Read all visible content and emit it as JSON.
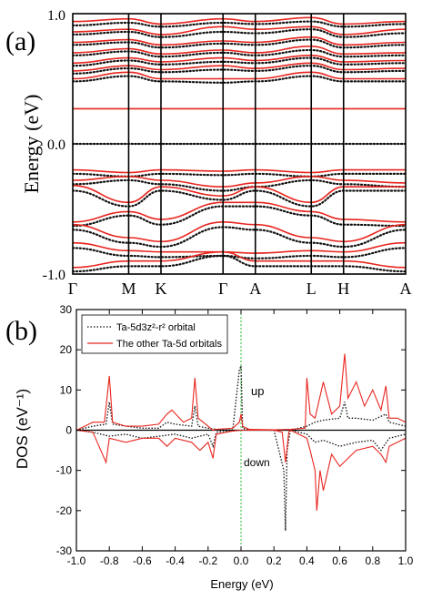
{
  "chart_data": [
    {
      "type": "line",
      "panel_label": "(a)",
      "ylabel": "Energy (eV)",
      "ylim": [
        -1.0,
        1.0
      ],
      "y_ticks": [
        "1.0",
        "0.0",
        "-1.0"
      ],
      "k_points": [
        "Γ",
        "M",
        "K",
        "Γ",
        "A",
        "L",
        "H",
        "A"
      ],
      "k_positions": [
        0,
        0.372,
        0.587,
        1.0,
        1.215,
        1.587,
        1.802,
        2.215
      ],
      "series": [
        {
          "style": "solid",
          "color": "#e8261f",
          "bands": [
            [
              0.27,
              0.27,
              0.27,
              0.27,
              0.27,
              0.27,
              0.27,
              0.27
            ],
            [
              0.5,
              0.55,
              0.5,
              0.5,
              0.5,
              0.55,
              0.5,
              0.5
            ],
            [
              0.56,
              0.6,
              0.57,
              0.6,
              0.58,
              0.62,
              0.57,
              0.58
            ],
            [
              0.62,
              0.66,
              0.63,
              0.66,
              0.64,
              0.68,
              0.63,
              0.64
            ],
            [
              0.7,
              0.73,
              0.69,
              0.72,
              0.7,
              0.75,
              0.69,
              0.7
            ],
            [
              0.78,
              0.8,
              0.76,
              0.79,
              0.78,
              0.82,
              0.76,
              0.78
            ],
            [
              0.86,
              0.88,
              0.84,
              0.9,
              0.88,
              0.9,
              0.84,
              0.88
            ],
            [
              0.94,
              0.96,
              0.92,
              0.96,
              0.94,
              0.97,
              0.92,
              0.94
            ],
            [
              -0.2,
              -0.22,
              -0.2,
              -0.21,
              -0.2,
              -0.22,
              -0.2,
              -0.2
            ],
            [
              -0.28,
              -0.25,
              -0.28,
              -0.33,
              -0.3,
              -0.25,
              -0.28,
              -0.3
            ],
            [
              -0.32,
              -0.45,
              -0.33,
              -0.4,
              -0.33,
              -0.45,
              -0.33,
              -0.33
            ],
            [
              -0.6,
              -0.52,
              -0.58,
              -0.45,
              -0.45,
              -0.52,
              -0.58,
              -0.6
            ],
            [
              -0.62,
              -0.72,
              -0.75,
              -0.6,
              -0.62,
              -0.72,
              -0.75,
              -0.62
            ],
            [
              -0.76,
              -0.82,
              -0.83,
              -0.83,
              -0.84,
              -0.82,
              -0.83,
              -0.76
            ],
            [
              -0.95,
              -0.9,
              -0.9,
              -0.83,
              -0.9,
              -0.9,
              -0.9,
              -0.95
            ]
          ]
        },
        {
          "style": "dotted",
          "color": "#111111",
          "bands": [
            [
              0.0,
              0.0,
              0.0,
              0.0,
              0.0,
              0.0,
              0.0,
              0.0
            ],
            [
              0.48,
              0.52,
              0.48,
              0.47,
              0.48,
              0.52,
              0.48,
              0.48
            ],
            [
              0.54,
              0.58,
              0.55,
              0.57,
              0.56,
              0.6,
              0.55,
              0.56
            ],
            [
              0.6,
              0.64,
              0.61,
              0.63,
              0.62,
              0.66,
              0.61,
              0.62
            ],
            [
              0.68,
              0.71,
              0.67,
              0.7,
              0.68,
              0.72,
              0.67,
              0.68
            ],
            [
              0.76,
              0.78,
              0.74,
              0.77,
              0.76,
              0.8,
              0.74,
              0.76
            ],
            [
              0.84,
              0.86,
              0.82,
              0.86,
              0.85,
              0.88,
              0.82,
              0.85
            ],
            [
              0.91,
              0.93,
              0.9,
              0.93,
              0.92,
              0.94,
              0.9,
              0.92
            ],
            [
              -0.23,
              -0.25,
              -0.23,
              -0.24,
              -0.23,
              -0.25,
              -0.23,
              -0.23
            ],
            [
              -0.31,
              -0.28,
              -0.31,
              -0.36,
              -0.33,
              -0.28,
              -0.31,
              -0.33
            ],
            [
              -0.36,
              -0.48,
              -0.36,
              -0.43,
              -0.36,
              -0.48,
              -0.36,
              -0.36
            ],
            [
              -0.63,
              -0.55,
              -0.62,
              -0.48,
              -0.48,
              -0.55,
              -0.62,
              -0.63
            ],
            [
              -0.66,
              -0.76,
              -0.79,
              -0.64,
              -0.66,
              -0.76,
              -0.79,
              -0.66
            ],
            [
              -0.8,
              -0.86,
              -0.87,
              -0.86,
              -0.88,
              -0.86,
              -0.87,
              -0.8
            ],
            [
              -0.98,
              -0.94,
              -0.94,
              -0.86,
              -0.94,
              -0.94,
              -0.94,
              -0.98
            ]
          ]
        }
      ]
    },
    {
      "type": "line",
      "panel_label": "(b)",
      "xlabel": "Energy (eV)",
      "ylabel": "DOS (eV⁻¹)",
      "xlim": [
        -1.0,
        1.0
      ],
      "ylim": [
        -30,
        30
      ],
      "x_ticks": [
        "-1.0",
        "-0.8",
        "-0.6",
        "-0.4",
        "-0.2",
        "0.0",
        "0.2",
        "0.4",
        "0.6",
        "0.8",
        "1.0"
      ],
      "y_ticks": [
        "30",
        "20",
        "10",
        "0",
        "-10",
        "-20",
        "-30"
      ],
      "annotations": [
        "up",
        "down"
      ],
      "vline_x": 0.0,
      "vline_color": "#22c02a",
      "series": [
        {
          "name": "Ta-5d3z²-r² orbital",
          "style": "dotted",
          "color": "#111111",
          "up_x": [
            -1.0,
            -0.95,
            -0.9,
            -0.82,
            -0.8,
            -0.78,
            -0.7,
            -0.6,
            -0.5,
            -0.45,
            -0.4,
            -0.3,
            -0.28,
            -0.26,
            -0.2,
            -0.15,
            -0.05,
            -0.01,
            0.0,
            0.01,
            0.05,
            0.2,
            0.25,
            0.27,
            0.3,
            0.4,
            0.45,
            0.5,
            0.6,
            0.63,
            0.65,
            0.7,
            0.8,
            0.88,
            0.9,
            1.0
          ],
          "up_y": [
            0,
            0.5,
            1,
            1.5,
            7,
            1.5,
            1,
            0.5,
            0.5,
            2,
            1.5,
            1,
            6,
            1,
            0.5,
            0.2,
            0.1,
            15,
            16,
            0.5,
            0.1,
            0,
            0,
            0,
            0,
            1,
            2,
            2.5,
            3,
            7,
            3,
            3,
            2.5,
            4,
            2,
            1
          ],
          "down_x": [
            -1.0,
            -0.9,
            -0.8,
            -0.7,
            -0.6,
            -0.5,
            -0.4,
            -0.3,
            -0.2,
            -0.17,
            -0.15,
            -0.05,
            0.0,
            0.05,
            0.2,
            0.26,
            0.27,
            0.28,
            0.3,
            0.4,
            0.45,
            0.5,
            0.6,
            0.7,
            0.8,
            0.85,
            0.9,
            1.0
          ],
          "down_y": [
            0,
            -0.5,
            -1.5,
            -1,
            -2,
            -1.5,
            -1,
            -2,
            -1,
            -4,
            -0.5,
            -0.1,
            0,
            0,
            0,
            -10,
            -25,
            -5,
            0,
            -1,
            -3,
            -2.5,
            -4,
            -3,
            -2.5,
            -5,
            -2,
            -1
          ]
        },
        {
          "name": "The other Ta-5d orbitals",
          "style": "solid",
          "color": "#e8261f",
          "up_x": [
            -1.0,
            -0.95,
            -0.9,
            -0.83,
            -0.8,
            -0.78,
            -0.7,
            -0.6,
            -0.5,
            -0.45,
            -0.42,
            -0.35,
            -0.3,
            -0.28,
            -0.26,
            -0.2,
            -0.17,
            -0.15,
            -0.05,
            -0.01,
            0.0,
            0.01,
            0.05,
            0.2,
            0.3,
            0.39,
            0.4,
            0.42,
            0.45,
            0.5,
            0.55,
            0.6,
            0.63,
            0.65,
            0.7,
            0.75,
            0.8,
            0.85,
            0.88,
            0.9,
            0.95,
            1.0
          ],
          "up_y": [
            0,
            1,
            2,
            2,
            13.5,
            2,
            1,
            1,
            1.5,
            4,
            5,
            2,
            3,
            13,
            3,
            1,
            0,
            0.2,
            0.5,
            2,
            4,
            1,
            0.2,
            0.1,
            0.2,
            0.5,
            13,
            4,
            3,
            12,
            4,
            6,
            19,
            8,
            12,
            6,
            10,
            5,
            11,
            3,
            3,
            2
          ],
          "down_x": [
            -1.0,
            -0.9,
            -0.82,
            -0.8,
            -0.7,
            -0.6,
            -0.5,
            -0.45,
            -0.4,
            -0.3,
            -0.25,
            -0.2,
            -0.17,
            -0.15,
            -0.05,
            0.0,
            0.05,
            0.2,
            0.25,
            0.27,
            0.29,
            0.3,
            0.35,
            0.4,
            0.42,
            0.45,
            0.46,
            0.48,
            0.5,
            0.55,
            0.6,
            0.65,
            0.7,
            0.8,
            0.85,
            0.88,
            0.9,
            1.0
          ],
          "down_y": [
            0,
            -0.5,
            -8,
            -2,
            -3,
            -2,
            -2,
            -4,
            -2,
            -3,
            -5,
            -3,
            -7,
            -1,
            -0.2,
            0,
            0,
            0,
            -0.5,
            -8,
            -0.5,
            0,
            -1,
            -2,
            -5,
            -10,
            -20,
            -10,
            -15,
            -6,
            -9,
            -7,
            -5,
            -4,
            -6,
            -8,
            -4,
            -2
          ]
        }
      ]
    }
  ]
}
